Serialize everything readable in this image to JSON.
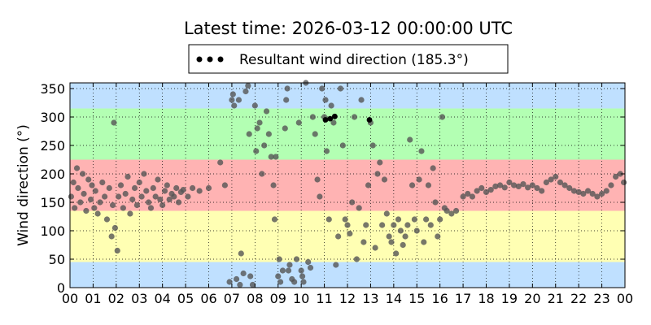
{
  "chart_data": {
    "type": "scatter",
    "title": "Latest time: 2026-03-12 00:00:00 UTC",
    "xlabel": "",
    "ylabel": "Wind direction (°)",
    "xlim": [
      0,
      24
    ],
    "ylim": [
      0,
      360
    ],
    "x_ticks": [
      "00",
      "01",
      "02",
      "03",
      "04",
      "05",
      "06",
      "07",
      "08",
      "09",
      "10",
      "11",
      "12",
      "13",
      "14",
      "15",
      "16",
      "17",
      "18",
      "19",
      "20",
      "21",
      "22",
      "23",
      "00"
    ],
    "y_ticks": [
      0,
      50,
      100,
      150,
      200,
      250,
      300,
      350
    ],
    "grid": true,
    "legend": {
      "position": "top-center",
      "label": "Resultant wind direction (185.3°)"
    },
    "bands": [
      {
        "from": 0,
        "to": 45,
        "color": "#bfe0ff"
      },
      {
        "from": 45,
        "to": 135,
        "color": "#ffffb3"
      },
      {
        "from": 135,
        "to": 225,
        "color": "#ffb3b3"
      },
      {
        "from": 225,
        "to": 315,
        "color": "#b3ffb3"
      },
      {
        "from": 315,
        "to": 360,
        "color": "#bfe0ff"
      }
    ],
    "series": [
      {
        "marker_color": "#555555",
        "points": [
          [
            0.05,
            160
          ],
          [
            0.15,
            185
          ],
          [
            0.2,
            140
          ],
          [
            0.3,
            210
          ],
          [
            0.35,
            175
          ],
          [
            0.45,
            150
          ],
          [
            0.55,
            200
          ],
          [
            0.6,
            165
          ],
          [
            0.7,
            135
          ],
          [
            0.8,
            190
          ],
          [
            0.9,
            155
          ],
          [
            0.95,
            180
          ],
          [
            1.05,
            140
          ],
          [
            1.1,
            170
          ],
          [
            1.2,
            130
          ],
          [
            1.3,
            150
          ],
          [
            1.4,
            185
          ],
          [
            1.5,
            160
          ],
          [
            1.6,
            120
          ],
          [
            1.7,
            175
          ],
          [
            1.8,
            90
          ],
          [
            1.85,
            145
          ],
          [
            1.9,
            290
          ],
          [
            1.95,
            105
          ],
          [
            2.05,
            65
          ],
          [
            2.1,
            160
          ],
          [
            2.2,
            180
          ],
          [
            2.3,
            140
          ],
          [
            2.4,
            165
          ],
          [
            2.5,
            195
          ],
          [
            2.6,
            130
          ],
          [
            2.7,
            155
          ],
          [
            2.8,
            175
          ],
          [
            2.9,
            145
          ],
          [
            3.0,
            185
          ],
          [
            3.1,
            160
          ],
          [
            3.2,
            200
          ],
          [
            3.3,
            170
          ],
          [
            3.4,
            150
          ],
          [
            3.5,
            140
          ],
          [
            3.6,
            175
          ],
          [
            3.7,
            160
          ],
          [
            3.8,
            190
          ],
          [
            3.9,
            155
          ],
          [
            4.0,
            145
          ],
          [
            4.1,
            170
          ],
          [
            4.2,
            180
          ],
          [
            4.3,
            155
          ],
          [
            4.4,
            165
          ],
          [
            4.5,
            160
          ],
          [
            4.6,
            175
          ],
          [
            4.7,
            150
          ],
          [
            4.8,
            168
          ],
          [
            4.9,
            172
          ],
          [
            5.1,
            160
          ],
          [
            5.3,
            175
          ],
          [
            5.6,
            170
          ],
          [
            6.0,
            175
          ],
          [
            6.5,
            220
          ],
          [
            6.7,
            180
          ],
          [
            6.9,
            10
          ],
          [
            7.0,
            330
          ],
          [
            7.05,
            340
          ],
          [
            7.1,
            320
          ],
          [
            7.2,
            15
          ],
          [
            7.3,
            330
          ],
          [
            7.35,
            5
          ],
          [
            7.4,
            60
          ],
          [
            7.5,
            25
          ],
          [
            7.6,
            345
          ],
          [
            7.7,
            355
          ],
          [
            7.75,
            270
          ],
          [
            7.8,
            20
          ],
          [
            7.9,
            5
          ],
          [
            8.0,
            320
          ],
          [
            8.05,
            240
          ],
          [
            8.1,
            280
          ],
          [
            8.2,
            290
          ],
          [
            8.3,
            200
          ],
          [
            8.4,
            250
          ],
          [
            8.5,
            310
          ],
          [
            8.6,
            270
          ],
          [
            8.7,
            230
          ],
          [
            8.8,
            180
          ],
          [
            8.85,
            120
          ],
          [
            8.9,
            230
          ],
          [
            9.0,
            20
          ],
          [
            9.05,
            50
          ],
          [
            9.1,
            10
          ],
          [
            9.2,
            30
          ],
          [
            9.3,
            280
          ],
          [
            9.35,
            330
          ],
          [
            9.4,
            350
          ],
          [
            9.45,
            30
          ],
          [
            9.5,
            40
          ],
          [
            9.6,
            15
          ],
          [
            9.7,
            10
          ],
          [
            9.8,
            50
          ],
          [
            9.9,
            290
          ],
          [
            10.0,
            30
          ],
          [
            10.05,
            20
          ],
          [
            10.1,
            10
          ],
          [
            10.2,
            360
          ],
          [
            10.3,
            45
          ],
          [
            10.4,
            35
          ],
          [
            10.5,
            300
          ],
          [
            10.6,
            270
          ],
          [
            10.7,
            190
          ],
          [
            10.8,
            160
          ],
          [
            10.9,
            350
          ],
          [
            11.0,
            300
          ],
          [
            11.05,
            330
          ],
          [
            11.1,
            240
          ],
          [
            11.2,
            120
          ],
          [
            11.3,
            320
          ],
          [
            11.4,
            290
          ],
          [
            11.5,
            40
          ],
          [
            11.6,
            90
          ],
          [
            11.7,
            350
          ],
          [
            11.8,
            250
          ],
          [
            11.9,
            120
          ],
          [
            12.0,
            110
          ],
          [
            12.1,
            95
          ],
          [
            12.2,
            150
          ],
          [
            12.3,
            300
          ],
          [
            12.4,
            50
          ],
          [
            12.5,
            140
          ],
          [
            12.6,
            330
          ],
          [
            12.7,
            80
          ],
          [
            12.8,
            110
          ],
          [
            12.9,
            180
          ],
          [
            13.0,
            290
          ],
          [
            13.1,
            250
          ],
          [
            13.2,
            70
          ],
          [
            13.3,
            200
          ],
          [
            13.4,
            220
          ],
          [
            13.5,
            110
          ],
          [
            13.6,
            190
          ],
          [
            13.7,
            130
          ],
          [
            13.8,
            90
          ],
          [
            13.9,
            80
          ],
          [
            14.0,
            110
          ],
          [
            14.1,
            60
          ],
          [
            14.2,
            120
          ],
          [
            14.3,
            100
          ],
          [
            14.4,
            75
          ],
          [
            14.5,
            90
          ],
          [
            14.6,
            110
          ],
          [
            14.7,
            260
          ],
          [
            14.8,
            180
          ],
          [
            14.9,
            120
          ],
          [
            15.0,
            100
          ],
          [
            15.1,
            190
          ],
          [
            15.2,
            240
          ],
          [
            15.3,
            80
          ],
          [
            15.4,
            120
          ],
          [
            15.5,
            180
          ],
          [
            15.6,
            110
          ],
          [
            15.7,
            210
          ],
          [
            15.8,
            150
          ],
          [
            15.9,
            90
          ],
          [
            16.0,
            120
          ],
          [
            16.1,
            300
          ],
          [
            16.2,
            140
          ],
          [
            16.3,
            135
          ],
          [
            16.5,
            130
          ],
          [
            16.7,
            135
          ],
          [
            17.0,
            160
          ],
          [
            17.2,
            165
          ],
          [
            17.4,
            160
          ],
          [
            17.6,
            170
          ],
          [
            17.8,
            175
          ],
          [
            18.0,
            168
          ],
          [
            18.2,
            172
          ],
          [
            18.4,
            178
          ],
          [
            18.6,
            180
          ],
          [
            18.8,
            176
          ],
          [
            19.0,
            185
          ],
          [
            19.2,
            180
          ],
          [
            19.4,
            178
          ],
          [
            19.6,
            182
          ],
          [
            19.8,
            176
          ],
          [
            20.0,
            180
          ],
          [
            20.2,
            175
          ],
          [
            20.4,
            170
          ],
          [
            20.6,
            185
          ],
          [
            20.8,
            190
          ],
          [
            21.0,
            195
          ],
          [
            21.2,
            185
          ],
          [
            21.4,
            180
          ],
          [
            21.6,
            175
          ],
          [
            21.8,
            170
          ],
          [
            22.0,
            168
          ],
          [
            22.2,
            165
          ],
          [
            22.4,
            170
          ],
          [
            22.6,
            165
          ],
          [
            22.8,
            160
          ],
          [
            23.0,
            165
          ],
          [
            23.2,
            170
          ],
          [
            23.4,
            180
          ],
          [
            23.6,
            195
          ],
          [
            23.8,
            200
          ],
          [
            23.95,
            185
          ]
        ]
      },
      {
        "marker_color": "#000000",
        "points": [
          [
            11.05,
            295
          ],
          [
            11.25,
            297
          ],
          [
            11.45,
            301
          ],
          [
            12.95,
            295
          ]
        ]
      }
    ]
  }
}
